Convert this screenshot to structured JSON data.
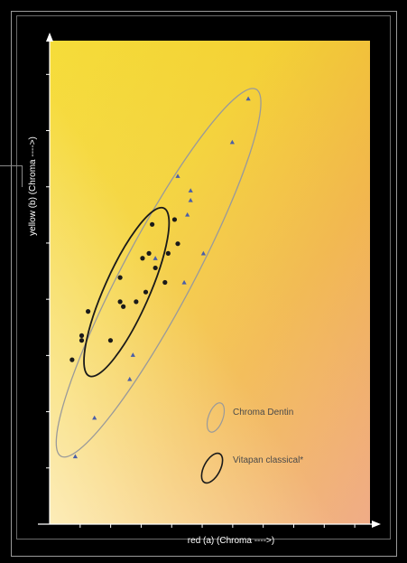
{
  "chart_data": {
    "type": "scatter",
    "title": "",
    "xlabel": "red (a) (Chroma ---->)",
    "ylabel": "yellow (b) (Chroma ---->)",
    "x_ticks": 10,
    "y_ticks": 8,
    "tick_labels_printed": false,
    "grid": false,
    "background": "yellow-to-orange gradient",
    "legend_position": "bottom-right",
    "colors": {
      "chroma_dentin": "#4a5ea8",
      "vitapan": "#1a1a1a",
      "ellipse_outer": "#9a9a9a",
      "ellipse_inner": "#1a1a1a"
    },
    "series": [
      {
        "name": "Chroma Dentin",
        "marker": "triangle",
        "x": [
          0.8,
          1.4,
          2.6,
          2.5,
          3.3,
          4.2,
          4.4,
          4.0,
          4.3,
          4.4,
          4.8,
          5.7,
          6.2
        ],
        "y": [
          1.4,
          2.2,
          3.5,
          3.0,
          5.5,
          5.0,
          6.7,
          7.2,
          6.4,
          6.9,
          5.6,
          7.9,
          8.8
        ]
      },
      {
        "name": "Vitapan classical*",
        "marker": "circle",
        "x": [
          0.7,
          1.0,
          1.0,
          1.2,
          1.9,
          2.2,
          2.2,
          2.3,
          2.7,
          2.9,
          3.0,
          3.2,
          3.3,
          3.6,
          3.7,
          3.9,
          4.0,
          3.1
        ],
        "y": [
          3.4,
          3.8,
          3.9,
          4.4,
          3.8,
          5.1,
          4.6,
          4.5,
          4.6,
          5.5,
          4.8,
          6.2,
          5.3,
          5.0,
          5.6,
          6.3,
          5.8,
          5.6
        ]
      }
    ],
    "ellipses": [
      {
        "series": "Chroma Dentin",
        "cx": 3.4,
        "cy": 5.2,
        "rx": 1.1,
        "ry": 4.3,
        "rotation_deg": 28
      },
      {
        "series": "Vitapan classical*",
        "cx": 2.4,
        "cy": 4.8,
        "rx": 0.7,
        "ry": 1.9,
        "rotation_deg": 24
      }
    ]
  }
}
